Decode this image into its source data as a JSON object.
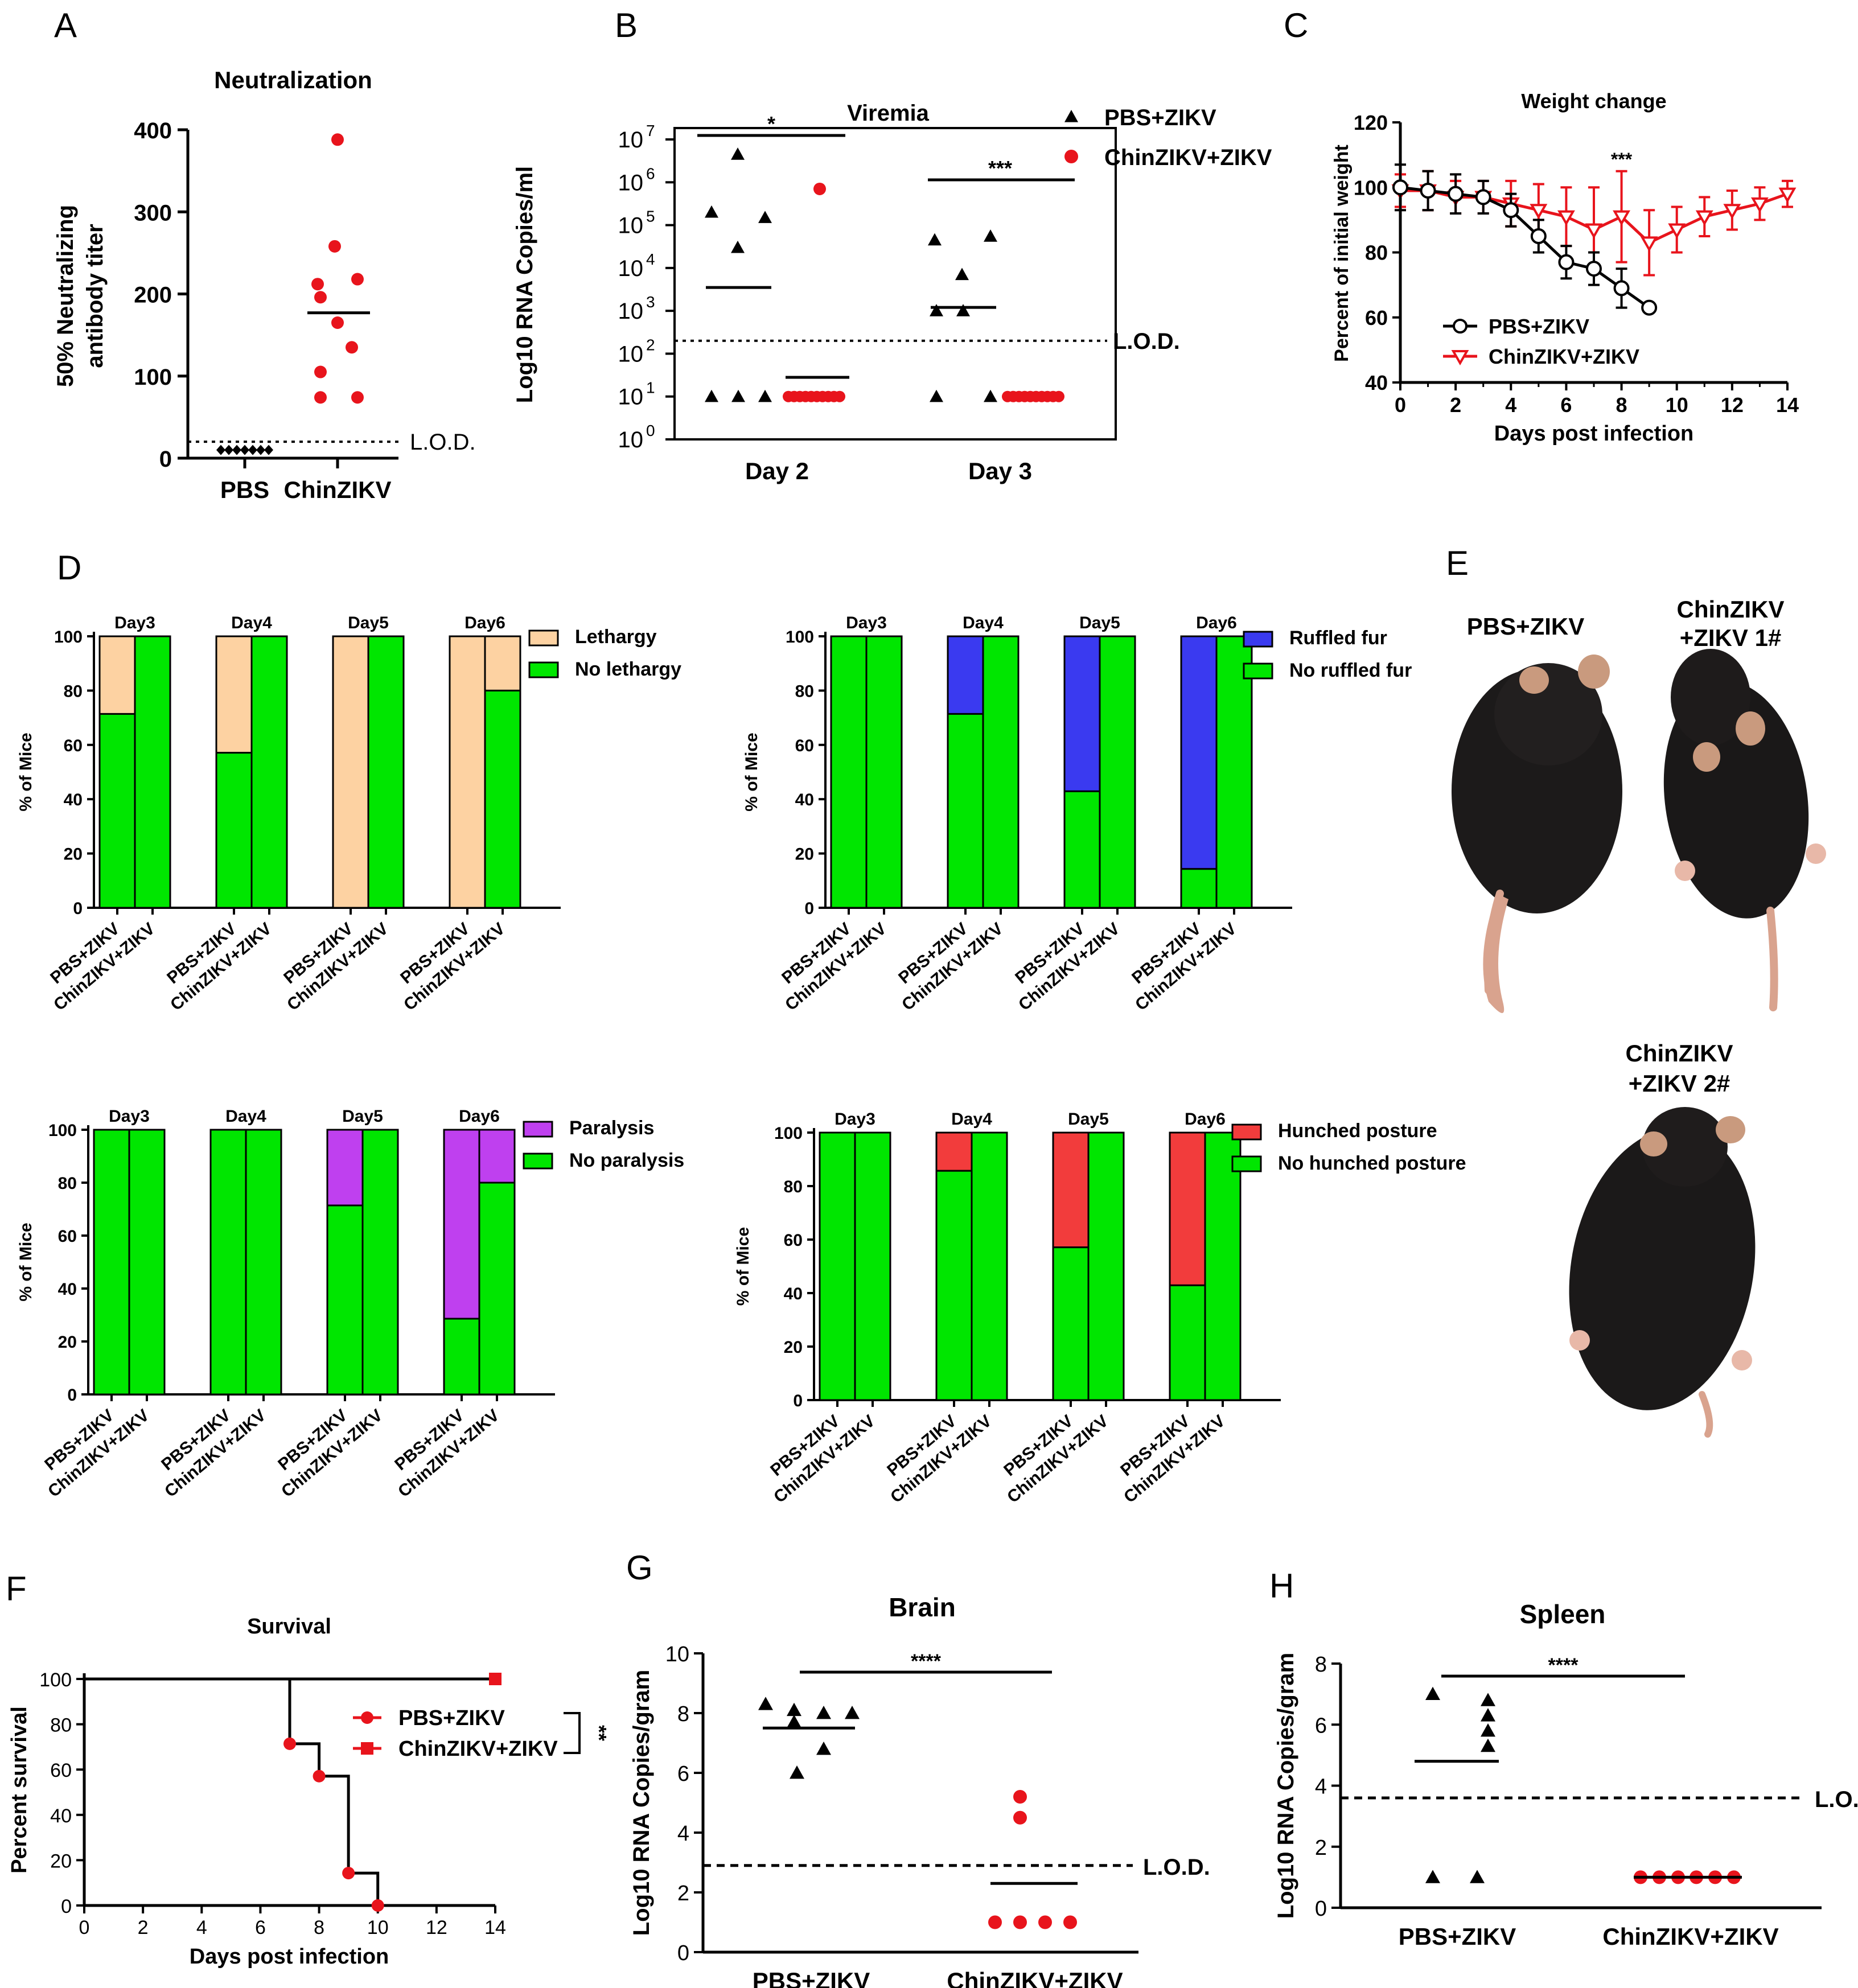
{
  "colors": {
    "black": "#000000",
    "red": "#e8141c",
    "peach": "#fdd2a2",
    "green": "#00e600",
    "blue": "#3a3af0",
    "purple": "#bf40ef",
    "hred": "#f23c3c"
  },
  "chart_data": [
    {
      "panel": "A",
      "type": "scatter",
      "title": "Neutralization",
      "ylabel_lines": [
        "50% Neutralizing",
        "antibody titer"
      ],
      "categories": [
        "PBS",
        "ChinZIKV"
      ],
      "ylim": [
        0,
        400
      ],
      "yticks": [
        0,
        100,
        200,
        300,
        400
      ],
      "groups": [
        {
          "name": "PBS",
          "values": [
            10,
            10,
            10,
            10,
            10,
            10,
            10
          ],
          "color": "black"
        },
        {
          "name": "ChinZIKV",
          "values": [
            388,
            258,
            218,
            212,
            196,
            165,
            135,
            105,
            74,
            74
          ],
          "color": "red",
          "mean": 177
        }
      ],
      "lod": 20,
      "lod_label": "L.O.D."
    },
    {
      "panel": "B",
      "type": "scatter",
      "title": "Viremia",
      "ylabel": "Log10 RNA Copies/ml",
      "yscale": "log",
      "ylim": [
        1,
        10000000
      ],
      "ytick_labels": [
        "10^0",
        "10^1",
        "10^2",
        "10^3",
        "10^4",
        "10^5",
        "10^6",
        "10^7"
      ],
      "categories": [
        "Day 2",
        "Day 3"
      ],
      "legend": [
        "PBS+ZIKV",
        "ChinZIKV+ZIKV"
      ],
      "series": [
        {
          "name": "PBS+ZIKV",
          "day2": [
            4500000,
            200000,
            150000,
            30000,
            10,
            10,
            10
          ],
          "day3": [
            50000,
            55000,
            7000,
            1000,
            1000,
            10,
            10
          ],
          "means": [
            3500,
            1200
          ]
        },
        {
          "name": "ChinZIKV+ZIKV",
          "day2": [
            700000,
            10,
            10,
            10,
            10,
            10,
            10,
            10,
            10,
            10
          ],
          "day3": [
            10,
            10,
            10,
            10,
            10,
            10,
            10,
            10,
            10,
            10
          ],
          "means": [
            28,
            10
          ]
        }
      ],
      "sig": [
        "*",
        "***"
      ],
      "lod": 200,
      "lod_label": "L.O.D."
    },
    {
      "panel": "C",
      "type": "line",
      "title": "Weight change",
      "ylabel": "Percent of initial weight",
      "xlabel": "Days post infection",
      "xlim": [
        0,
        14
      ],
      "ylim": [
        40,
        120
      ],
      "xticks": [
        0,
        2,
        4,
        6,
        8,
        10,
        12,
        14
      ],
      "yticks": [
        40,
        60,
        80,
        100,
        120
      ],
      "series": [
        {
          "name": "PBS+ZIKV",
          "x": [
            0,
            1,
            2,
            3,
            4,
            5,
            6,
            7,
            8,
            9
          ],
          "y": [
            100,
            99,
            98,
            97,
            93,
            85,
            77,
            75,
            69,
            63
          ],
          "err": [
            7,
            6,
            6,
            5,
            5,
            5,
            5,
            5,
            6,
            0
          ]
        },
        {
          "name": "ChinZIKV+ZIKV",
          "x": [
            0,
            1,
            2,
            3,
            4,
            5,
            6,
            7,
            8,
            9,
            10,
            11,
            12,
            13,
            14
          ],
          "y": [
            99,
            99,
            97,
            97,
            95,
            93,
            91,
            87,
            91,
            83,
            87,
            91,
            93,
            95,
            98
          ],
          "err": [
            5,
            6,
            5,
            5,
            7,
            8,
            9,
            13,
            14,
            10,
            7,
            6,
            6,
            5,
            4
          ]
        }
      ],
      "sig": "***"
    },
    {
      "panel": "D1",
      "type": "bar",
      "stacked": true,
      "ylabel": "% of Mice",
      "days": [
        "Day3",
        "Day4",
        "Day5",
        "Day6"
      ],
      "groups": [
        "PBS+ZIKV",
        "ChinZIKV+ZIKV"
      ],
      "legend": [
        "Lethargy",
        "No lethargy"
      ],
      "colors": [
        "peach",
        "green"
      ],
      "pbs_no": [
        71.4,
        57.1,
        0,
        0
      ],
      "chin_no": [
        100,
        100,
        100,
        80
      ]
    },
    {
      "panel": "D2",
      "type": "bar",
      "stacked": true,
      "ylabel": "% of Mice",
      "days": [
        "Day3",
        "Day4",
        "Day5",
        "Day6"
      ],
      "groups": [
        "PBS+ZIKV",
        "ChinZIKV+ZIKV"
      ],
      "legend": [
        "Ruffled fur",
        "No ruffled fur"
      ],
      "colors": [
        "blue",
        "green"
      ],
      "pbs_no": [
        100,
        71.4,
        42.9,
        14.3
      ],
      "chin_no": [
        100,
        100,
        100,
        100
      ]
    },
    {
      "panel": "D3",
      "type": "bar",
      "stacked": true,
      "ylabel": "% of Mice",
      "days": [
        "Day3",
        "Day4",
        "Day5",
        "Day6"
      ],
      "groups": [
        "PBS+ZIKV",
        "ChinZIKV+ZIKV"
      ],
      "legend": [
        "Paralysis",
        "No paralysis"
      ],
      "colors": [
        "purple",
        "green"
      ],
      "pbs_no": [
        100,
        100,
        71.4,
        28.6
      ],
      "chin_no": [
        100,
        100,
        100,
        80
      ]
    },
    {
      "panel": "D4",
      "type": "bar",
      "stacked": true,
      "ylabel": "% of Mice",
      "days": [
        "Day3",
        "Day4",
        "Day5",
        "Day6"
      ],
      "groups": [
        "PBS+ZIKV",
        "ChinZIKV+ZIKV"
      ],
      "legend": [
        "Hunched posture",
        "No hunched posture"
      ],
      "colors": [
        "hred",
        "green"
      ],
      "pbs_no": [
        100,
        85.7,
        57.1,
        42.9
      ],
      "chin_no": [
        100,
        100,
        100,
        100
      ]
    },
    {
      "panel": "F",
      "type": "line",
      "title": "Survival",
      "ylabel": "Percent survival",
      "xlabel": "Days post infection",
      "xlim": [
        0,
        14
      ],
      "ylim": [
        0,
        100
      ],
      "xticks": [
        0,
        2,
        4,
        6,
        8,
        10,
        12,
        14
      ],
      "yticks": [
        0,
        20,
        40,
        60,
        80,
        100
      ],
      "series": [
        {
          "name": "PBS+ZIKV",
          "steps": [
            [
              0,
              100
            ],
            [
              7,
              71.4
            ],
            [
              8,
              57.1
            ],
            [
              9,
              14.3
            ],
            [
              10,
              0
            ]
          ]
        },
        {
          "name": "ChinZIKV+ZIKV",
          "steps": [
            [
              0,
              100
            ],
            [
              14,
              100
            ]
          ]
        }
      ],
      "sig": "**"
    },
    {
      "panel": "G",
      "type": "scatter",
      "title": "Brain",
      "ylabel": "Log10 RNA Copies/gram",
      "categories": [
        "PBS+ZIKV",
        "ChinZIKV+ZIKV"
      ],
      "ylim": [
        0,
        10
      ],
      "yticks": [
        0,
        2,
        4,
        6,
        8,
        10
      ],
      "groups": [
        {
          "name": "PBS+ZIKV",
          "values": [
            8.3,
            8.1,
            8.0,
            8.0,
            7.7,
            6.8,
            6.0
          ],
          "mean": 7.5
        },
        {
          "name": "ChinZIKV+ZIKV",
          "values": [
            5.2,
            4.5,
            1,
            1,
            1,
            1
          ],
          "mean": 2.3
        }
      ],
      "sig": "****",
      "lod": 2.9,
      "lod_label": "L.O.D."
    },
    {
      "panel": "H",
      "type": "scatter",
      "title": "Spleen",
      "ylabel": "Log10 RNA Copies/gram",
      "categories": [
        "PBS+ZIKV",
        "ChinZIKV+ZIKV"
      ],
      "ylim": [
        0,
        8
      ],
      "yticks": [
        0,
        2,
        4,
        6,
        8
      ],
      "groups": [
        {
          "name": "PBS+ZIKV",
          "values": [
            7.0,
            6.8,
            6.3,
            5.8,
            5.3,
            1,
            1
          ],
          "mean": 4.8
        },
        {
          "name": "ChinZIKV+ZIKV",
          "values": [
            1,
            1,
            1,
            1,
            1,
            1
          ],
          "mean": 1
        }
      ],
      "sig": "****",
      "lod": 3.6,
      "lod_label": "L.O.D."
    }
  ],
  "panel_letters": {
    "A": "A",
    "B": "B",
    "C": "C",
    "D": "D",
    "E": "E",
    "F": "F",
    "G": "G",
    "H": "H"
  },
  "panelE": {
    "left_label": "PBS+ZIKV",
    "right_label_1": "ChinZIKV",
    "right_label_2": "+ZIKV 1#",
    "bottom_label_1": "ChinZIKV",
    "bottom_label_2": "+ZIKV 2#"
  }
}
